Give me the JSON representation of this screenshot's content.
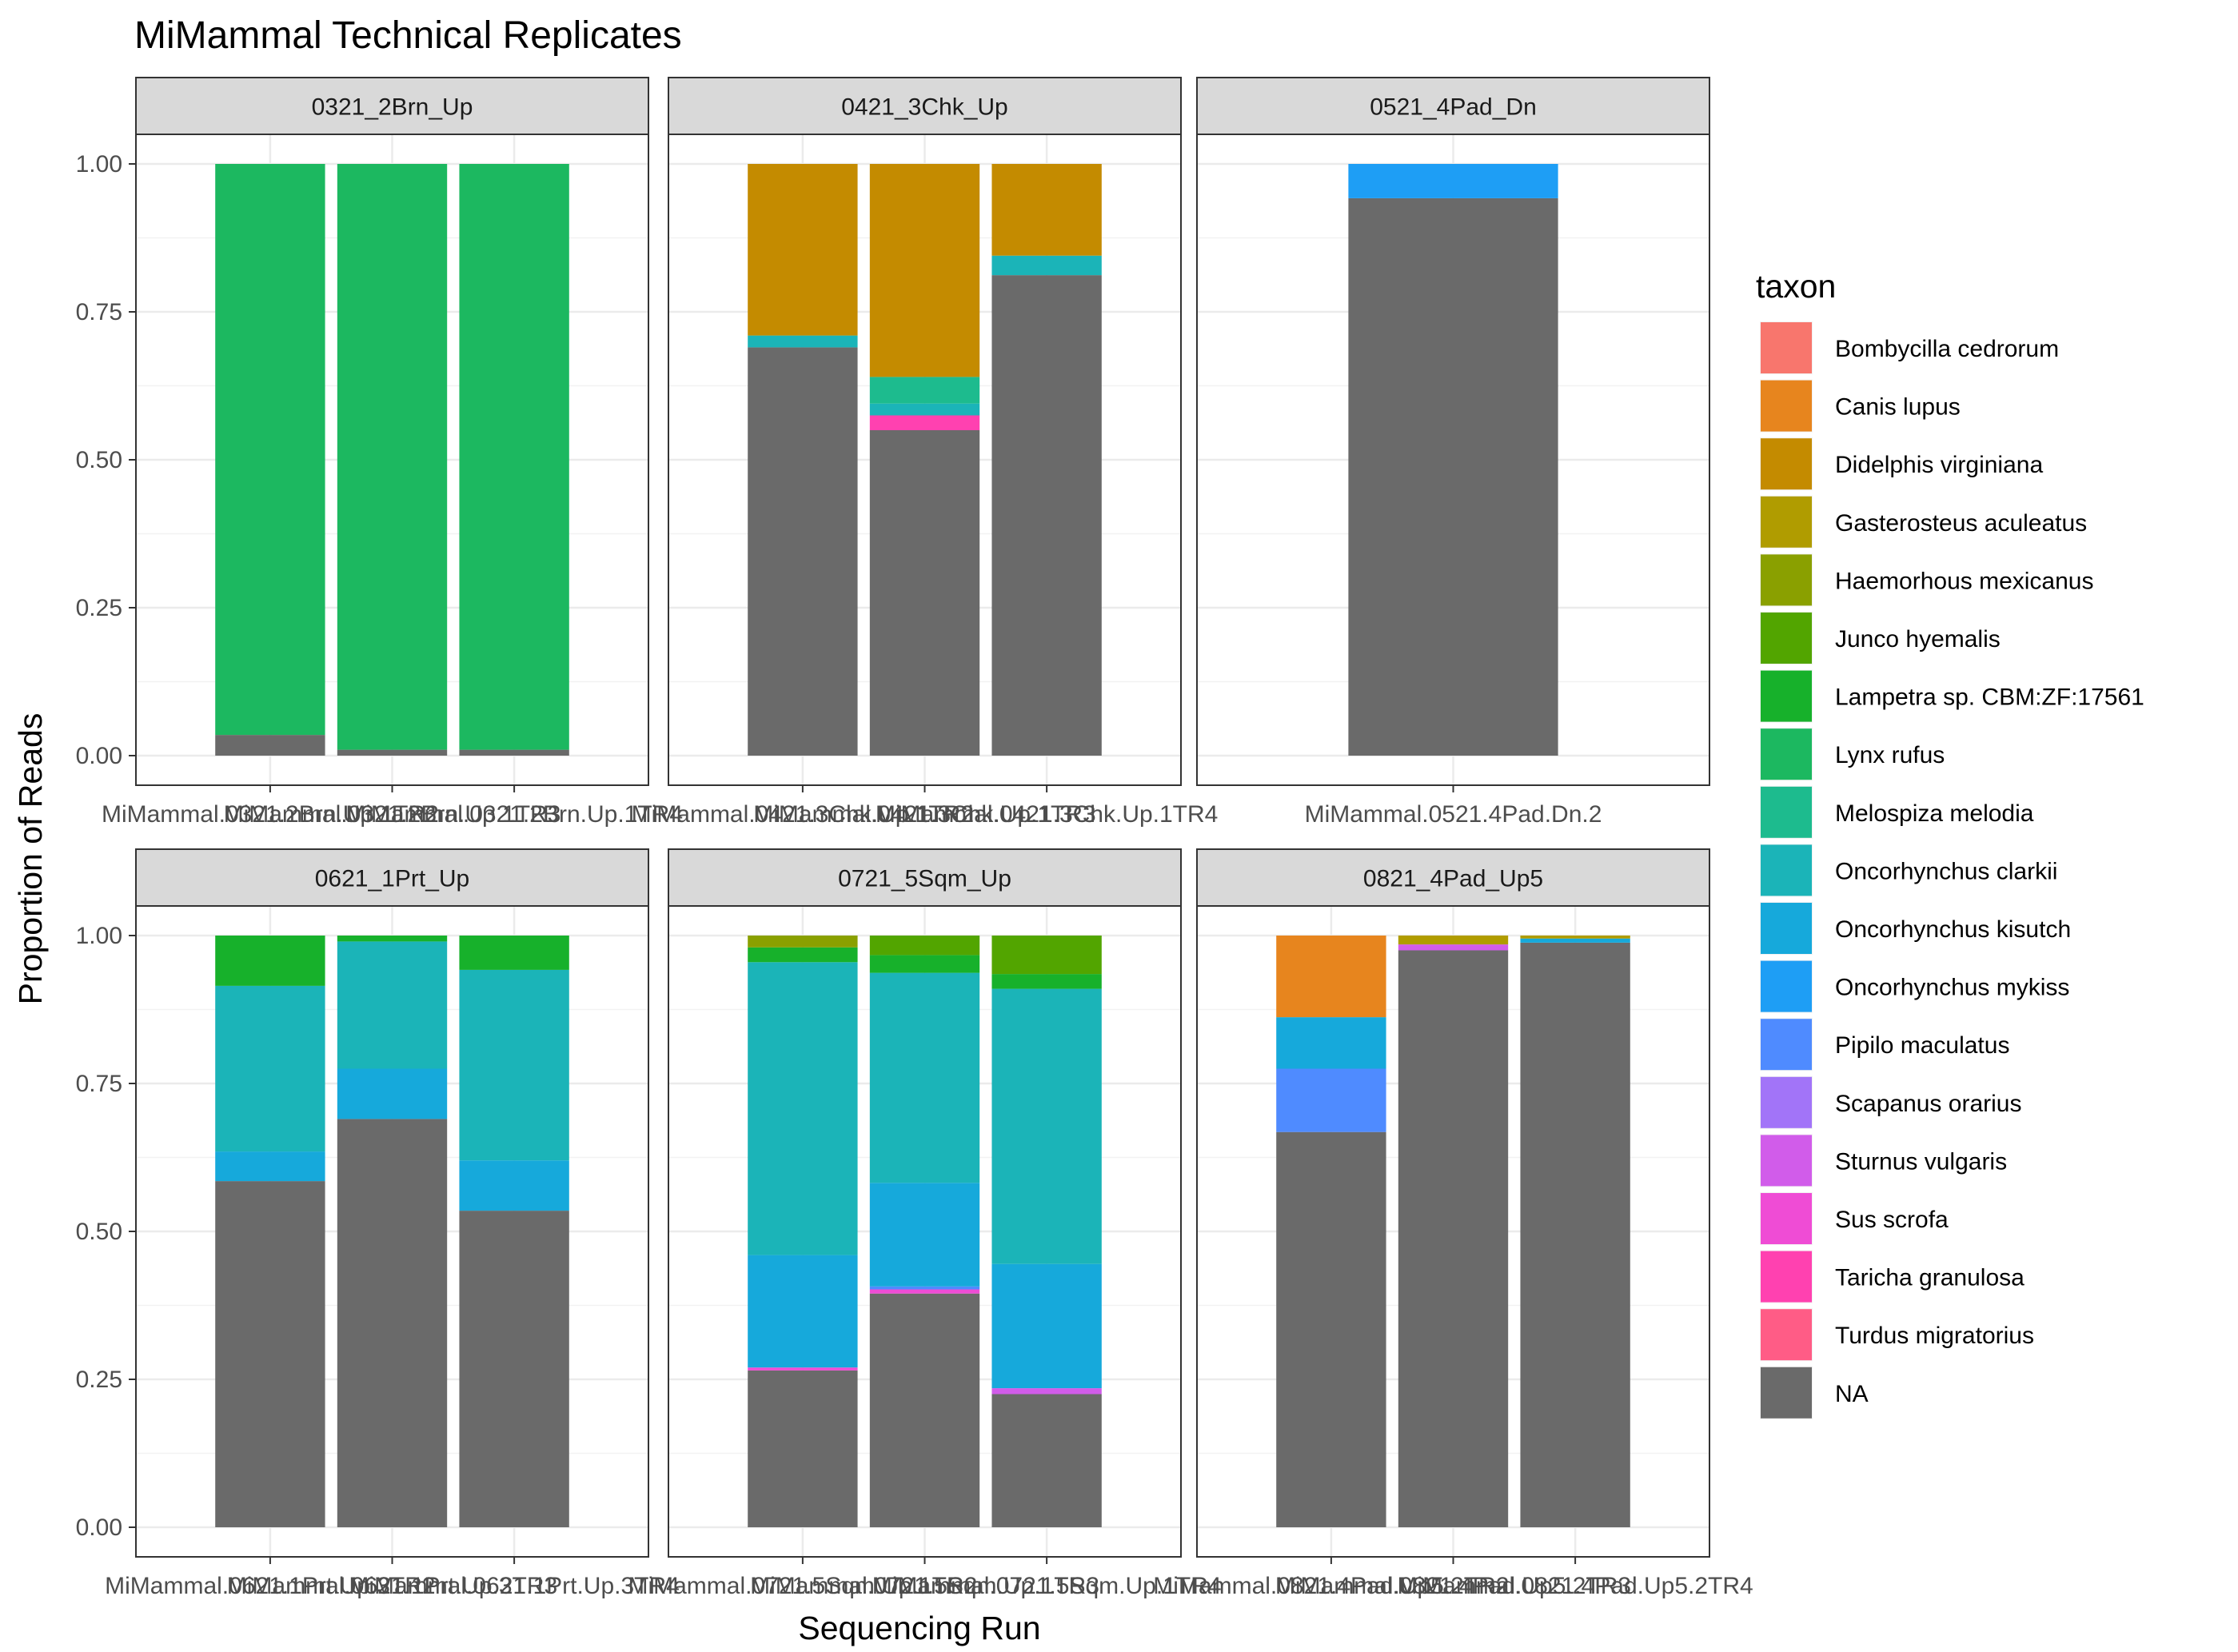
{
  "chart_data": {
    "type": "bar",
    "title": "MiMammal Technical Replicates",
    "xlabel": "Sequencing Run",
    "ylabel": "Proportion of Reads",
    "ylim": [
      0,
      1.05
    ],
    "y_ticks": [
      "0.00",
      "0.25",
      "0.50",
      "0.75",
      "1.00"
    ],
    "y_tick_values": [
      0,
      0.25,
      0.5,
      0.75,
      1.0
    ],
    "grid": true,
    "legend_position": "right",
    "legend": {
      "title": "taxon",
      "items": [
        {
          "name": "Bombycilla cedrorum",
          "color": "#F8766D"
        },
        {
          "name": "Canis lupus",
          "color": "#E7851E"
        },
        {
          "name": "Didelphis virginiana",
          "color": "#C48B00"
        },
        {
          "name": "Gasterosteus aculeatus",
          "color": "#B09C00"
        },
        {
          "name": "Haemorhous mexicanus",
          "color": "#8AA000"
        },
        {
          "name": "Junco hyemalis",
          "color": "#52A500"
        },
        {
          "name": "Lampetra sp. CBM:ZF:17561",
          "color": "#17B12B"
        },
        {
          "name": "Lynx rufus",
          "color": "#1CB860"
        },
        {
          "name": "Melospiza melodia",
          "color": "#1DBB8E"
        },
        {
          "name": "Oncorhynchus clarkii",
          "color": "#1BB4B8"
        },
        {
          "name": "Oncorhynchus kisutch",
          "color": "#16A9DB"
        },
        {
          "name": "Oncorhynchus mykiss",
          "color": "#1E9EF5"
        },
        {
          "name": "Pipilo maculatus",
          "color": "#4F8BFF"
        },
        {
          "name": "Scapanus orarius",
          "color": "#A274F8"
        },
        {
          "name": "Sturnus vulgaris",
          "color": "#D15CEA"
        },
        {
          "name": "Sus scrofa",
          "color": "#EF4CD5"
        },
        {
          "name": "Taricha granulosa",
          "color": "#FF41B0"
        },
        {
          "name": "Turdus migratorius",
          "color": "#FF5C86"
        },
        {
          "name": "NA",
          "color": "#6A6A6A"
        }
      ]
    },
    "panels": [
      {
        "name": "0321_2Brn_Up",
        "bars": [
          {
            "label": "MiMammal.0321.2Brn.Up.1TR2",
            "segments": [
              {
                "taxon": "NA",
                "value": 0.035
              },
              {
                "taxon": "Lynx rufus",
                "value": 0.965
              }
            ]
          },
          {
            "label": "MiMammal.0321.2Brn.Up.1TR3",
            "segments": [
              {
                "taxon": "NA",
                "value": 0.01
              },
              {
                "taxon": "Lynx rufus",
                "value": 0.99
              }
            ]
          },
          {
            "label": "MiMammal.0321.2Brn.Up.1TR4",
            "segments": [
              {
                "taxon": "NA",
                "value": 0.01
              },
              {
                "taxon": "Lynx rufus",
                "value": 0.99
              }
            ]
          }
        ]
      },
      {
        "name": "0421_3Chk_Up",
        "bars": [
          {
            "label": "MiMammal.0421.3Chk.Up.1TR2",
            "segments": [
              {
                "taxon": "NA",
                "value": 0.69
              },
              {
                "taxon": "Oncorhynchus clarkii",
                "value": 0.02
              },
              {
                "taxon": "Didelphis virginiana",
                "value": 0.29
              }
            ]
          },
          {
            "label": "MiMammal.0421.3Chk.Up.1TR3",
            "segments": [
              {
                "taxon": "NA",
                "value": 0.55
              },
              {
                "taxon": "Taricha granulosa",
                "value": 0.025
              },
              {
                "taxon": "Oncorhynchus clarkii",
                "value": 0.02
              },
              {
                "taxon": "Melospiza melodia",
                "value": 0.045
              },
              {
                "taxon": "Didelphis virginiana",
                "value": 0.36
              }
            ]
          },
          {
            "label": "MiMammal.0421.3Chk.Up.1TR4",
            "segments": [
              {
                "taxon": "NA",
                "value": 0.812
              },
              {
                "taxon": "Oncorhynchus clarkii",
                "value": 0.033
              },
              {
                "taxon": "Didelphis virginiana",
                "value": 0.155
              }
            ]
          }
        ]
      },
      {
        "name": "0521_4Pad_Dn",
        "bars": [
          {
            "label": "MiMammal.0521.4Pad.Dn.2",
            "segments": [
              {
                "taxon": "NA",
                "value": 0.942
              },
              {
                "taxon": "Oncorhynchus mykiss",
                "value": 0.058
              }
            ]
          }
        ]
      },
      {
        "name": "0621_1Prt_Up",
        "bars": [
          {
            "label": "MiMammal.0621.1Prt.Up.3TR2",
            "segments": [
              {
                "taxon": "NA",
                "value": 0.585
              },
              {
                "taxon": "Oncorhynchus kisutch",
                "value": 0.05
              },
              {
                "taxon": "Oncorhynchus clarkii",
                "value": 0.28
              },
              {
                "taxon": "Lampetra sp. CBM:ZF:17561",
                "value": 0.085
              }
            ]
          },
          {
            "label": "MiMammal.0621.1Prt.Up.3TR3",
            "segments": [
              {
                "taxon": "NA",
                "value": 0.69
              },
              {
                "taxon": "Oncorhynchus kisutch",
                "value": 0.085
              },
              {
                "taxon": "Oncorhynchus clarkii",
                "value": 0.215
              },
              {
                "taxon": "Lampetra sp. CBM:ZF:17561",
                "value": 0.01
              }
            ]
          },
          {
            "label": "MiMammal.0621.1Prt.Up.3TR4",
            "segments": [
              {
                "taxon": "NA",
                "value": 0.535
              },
              {
                "taxon": "Oncorhynchus kisutch",
                "value": 0.085
              },
              {
                "taxon": "Oncorhynchus clarkii",
                "value": 0.322
              },
              {
                "taxon": "Lampetra sp. CBM:ZF:17561",
                "value": 0.058
              }
            ]
          }
        ]
      },
      {
        "name": "0721_5Sqm_Up",
        "bars": [
          {
            "label": "MiMammal.0721.5Sqm.Up.1TR2",
            "segments": [
              {
                "taxon": "NA",
                "value": 0.265
              },
              {
                "taxon": "Sus scrofa",
                "value": 0.005
              },
              {
                "taxon": "Oncorhynchus kisutch",
                "value": 0.19
              },
              {
                "taxon": "Oncorhynchus clarkii",
                "value": 0.495
              },
              {
                "taxon": "Lampetra sp. CBM:ZF:17561",
                "value": 0.025
              },
              {
                "taxon": "Haemorhous mexicanus",
                "value": 0.02
              }
            ]
          },
          {
            "label": "MiMammal.0721.5Sqm.Up.1TR3",
            "segments": [
              {
                "taxon": "NA",
                "value": 0.395
              },
              {
                "taxon": "Sus scrofa",
                "value": 0.007
              },
              {
                "taxon": "Pipilo maculatus",
                "value": 0.005
              },
              {
                "taxon": "Oncorhynchus kisutch",
                "value": 0.175
              },
              {
                "taxon": "Oncorhynchus clarkii",
                "value": 0.355
              },
              {
                "taxon": "Lampetra sp. CBM:ZF:17561",
                "value": 0.03
              },
              {
                "taxon": "Junco hyemalis",
                "value": 0.033
              }
            ]
          },
          {
            "label": "MiMammal.0721.5Sqm.Up.1TR4",
            "segments": [
              {
                "taxon": "NA",
                "value": 0.225
              },
              {
                "taxon": "Sturnus vulgaris",
                "value": 0.01
              },
              {
                "taxon": "Oncorhynchus kisutch",
                "value": 0.21
              },
              {
                "taxon": "Oncorhynchus clarkii",
                "value": 0.465
              },
              {
                "taxon": "Lampetra sp. CBM:ZF:17561",
                "value": 0.025
              },
              {
                "taxon": "Junco hyemalis",
                "value": 0.065
              }
            ]
          }
        ]
      },
      {
        "name": "0821_4Pad_Up5",
        "bars": [
          {
            "label": "MiMammal.0821.4Pad.Up5.2TR2",
            "segments": [
              {
                "taxon": "NA",
                "value": 0.668
              },
              {
                "taxon": "Pipilo maculatus",
                "value": 0.107
              },
              {
                "taxon": "Oncorhynchus kisutch",
                "value": 0.087
              },
              {
                "taxon": "Canis lupus",
                "value": 0.138
              }
            ]
          },
          {
            "label": "MiMammal.0821.4Pad.Up5.2TR3",
            "segments": [
              {
                "taxon": "NA",
                "value": 0.975
              },
              {
                "taxon": "Sturnus vulgaris",
                "value": 0.01
              },
              {
                "taxon": "Gasterosteus aculeatus",
                "value": 0.015
              }
            ]
          },
          {
            "label": "MiMammal.0821.4Pad.Up5.2TR4",
            "segments": [
              {
                "taxon": "NA",
                "value": 0.988
              },
              {
                "taxon": "Oncorhynchus kisutch",
                "value": 0.007
              },
              {
                "taxon": "Gasterosteus aculeatus",
                "value": 0.005
              }
            ]
          }
        ]
      }
    ]
  }
}
